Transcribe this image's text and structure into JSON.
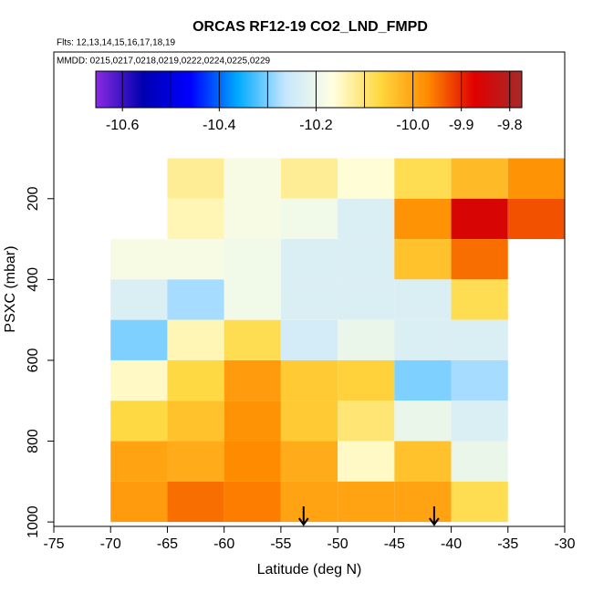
{
  "chart_data": {
    "type": "heatmap",
    "title": "ORCAS RF12-19 CO2_LND_FMPD",
    "subtitle": "Flts: 12,13,14,15,16,17,18,19",
    "annotation": "MMDD: 0215,0217,0218,0219,0222,0224,0225,0229",
    "x_label": "Latitude (deg N)",
    "y_label": "PSXC (mbar)",
    "xlim": [
      -75,
      -30
    ],
    "xticks": [
      -75,
      -70,
      -65,
      -60,
      -55,
      -50,
      -45,
      -40,
      -35,
      -30
    ],
    "ylim": [
      1011,
      -163
    ],
    "yticks": [
      200,
      400,
      600,
      800,
      1000
    ],
    "x_bins": [
      -70,
      -65,
      -60,
      -55,
      -50,
      -45,
      -40,
      -35,
      -30
    ],
    "y_bins": [
      100,
      200,
      300,
      400,
      500,
      600,
      700,
      800,
      900,
      1000
    ],
    "z": [
      [
        null,
        -10.12,
        -10.18,
        -10.12,
        -10.16,
        -10.08,
        -10.03,
        -9.98
      ],
      [
        null,
        -10.14,
        -10.18,
        -10.19,
        -10.23,
        -9.98,
        -9.86,
        -9.93
      ],
      [
        -10.18,
        -10.18,
        -10.19,
        -10.23,
        -10.23,
        -10.04,
        -9.95,
        null
      ],
      [
        -10.23,
        -10.28,
        -10.19,
        -10.23,
        -10.23,
        -10.23,
        -10.08,
        null
      ],
      [
        -10.3,
        -10.14,
        -10.08,
        -10.24,
        -10.2,
        -10.23,
        -10.23,
        null
      ],
      [
        -10.15,
        -10.07,
        -9.99,
        -10.05,
        -10.06,
        -10.3,
        -10.28,
        null
      ],
      [
        -10.07,
        -10.04,
        -9.98,
        -10.05,
        -10.1,
        -10.2,
        -10.23,
        null
      ],
      [
        -10.0,
        -10.01,
        -9.97,
        -10.01,
        -10.15,
        -10.04,
        -10.2,
        null
      ],
      [
        -9.99,
        -9.95,
        -9.96,
        -10.0,
        -10.0,
        -10.0,
        -10.08,
        null
      ]
    ],
    "zlim": [
      -10.655,
      -9.775
    ],
    "zticks": [
      -10.6,
      -10.4,
      -10.2,
      {
        "value": -10,
        "label": "-10.0"
      },
      -9.9,
      -9.8
    ],
    "zbreaks": [
      -10.6,
      -10.5,
      -10.4,
      -10.3,
      -10.2,
      -10.1,
      -10,
      -9.9,
      -9.8
    ],
    "colorscale": [
      "#8a2be2",
      "#0000b0",
      "#0000ff",
      "#00aaff",
      "#c6e6ff",
      "#ffffe0",
      "#ffd840",
      "#ff8c00",
      "#e00000",
      "#a52a2a"
    ],
    "arrows": [
      -53,
      -41.5
    ]
  }
}
